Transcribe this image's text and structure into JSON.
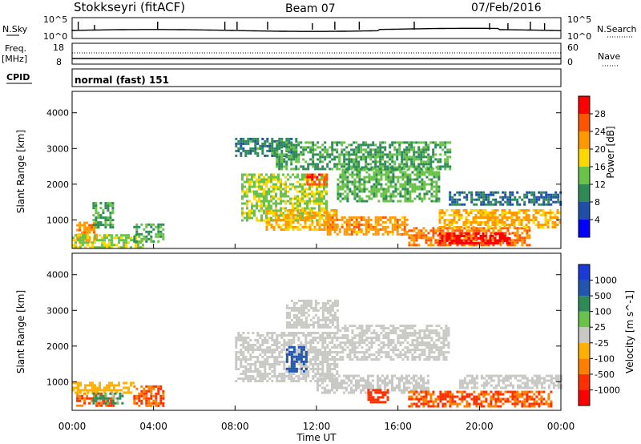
{
  "header": {
    "station": "Stokkseyri (fitACF)",
    "beam": "Beam 07",
    "date": "07/Feb/2016"
  },
  "top_panels": {
    "nsky_label": "N.Sky",
    "nsky_ticks": [
      "10^5",
      "10^0"
    ],
    "nsearch_label": "N.Search",
    "nsearch_ticks": [
      "10^5",
      "10^0"
    ],
    "freq_label": "Freq.",
    "freq_unit": "[MHz]",
    "freq_ticks": [
      "18",
      "8"
    ],
    "nave_label": "Nave",
    "nave_ticks": [
      "60",
      "0"
    ],
    "cpid_label": "CPID",
    "cpid_text": "normal (fast) 151"
  },
  "colors": {
    "power": [
      "#0000ff",
      "#1f4fa8",
      "#2e8b57",
      "#6ac24a",
      "#ffd700",
      "#ff9900",
      "#ff5500",
      "#ff0000"
    ],
    "velocity": [
      "#1a3ad6",
      "#2255b0",
      "#2e8b57",
      "#6ac24a",
      "#c8c8c4",
      "#ffb000",
      "#ff8000",
      "#ff3000",
      "#ff0000"
    ]
  },
  "chart_data": [
    {
      "type": "heatmap",
      "name": "power-panel",
      "xlabel": "",
      "ylabel": "Slant Range [km]",
      "xlim": [
        "00:00",
        "24:00"
      ],
      "ylim": [
        200,
        4600
      ],
      "yticks": [
        "1000",
        "2000",
        "3000",
        "4000"
      ],
      "xticks": [
        "00:00",
        "04:00",
        "08:00",
        "12:00",
        "16:00",
        "20:00",
        "00:00"
      ],
      "colorbar": {
        "label": "Power [dB]",
        "ticks": [
          "4",
          "8",
          "12",
          "16",
          "20",
          "24",
          "28"
        ],
        "range": [
          0,
          30
        ]
      },
      "regions": [
        {
          "t": [
            0.2,
            1.2
          ],
          "r": [
            400,
            950
          ],
          "level": 22
        },
        {
          "t": [
            0.0,
            3.5
          ],
          "r": [
            250,
            600
          ],
          "level": 14
        },
        {
          "t": [
            1.0,
            2.0
          ],
          "r": [
            800,
            1500
          ],
          "level": 10
        },
        {
          "t": [
            3.0,
            4.5
          ],
          "r": [
            400,
            900
          ],
          "level": 10
        },
        {
          "t": [
            8.3,
            12.5
          ],
          "r": [
            1000,
            2300
          ],
          "level": 14
        },
        {
          "t": [
            9.5,
            13.0
          ],
          "r": [
            700,
            1300
          ],
          "level": 20
        },
        {
          "t": [
            11.5,
            12.5
          ],
          "r": [
            2000,
            2300
          ],
          "level": 26
        },
        {
          "t": [
            12.5,
            16.5
          ],
          "r": [
            600,
            1100
          ],
          "level": 22
        },
        {
          "t": [
            13.0,
            18.0
          ],
          "r": [
            1500,
            2500
          ],
          "level": 12
        },
        {
          "t": [
            16.5,
            22.5
          ],
          "r": [
            300,
            800
          ],
          "level": 24
        },
        {
          "t": [
            18.0,
            21.5
          ],
          "r": [
            350,
            650
          ],
          "level": 30
        },
        {
          "t": [
            18.0,
            24.0
          ],
          "r": [
            800,
            1300
          ],
          "level": 20
        },
        {
          "t": [
            18.5,
            24.0
          ],
          "r": [
            1400,
            1800
          ],
          "level": 6
        },
        {
          "t": [
            8.0,
            11.0
          ],
          "r": [
            2800,
            3300
          ],
          "level": 8
        },
        {
          "t": [
            10.0,
            18.5
          ],
          "r": [
            2400,
            3200
          ],
          "level": 10
        }
      ]
    },
    {
      "type": "heatmap",
      "name": "velocity-panel",
      "xlabel": "Time UT",
      "ylabel": "Slant Range [km]",
      "xlim": [
        "00:00",
        "24:00"
      ],
      "ylim": [
        200,
        4600
      ],
      "yticks": [
        "1000",
        "2000",
        "3000",
        "4000"
      ],
      "xticks": [
        "00:00",
        "04:00",
        "08:00",
        "12:00",
        "16:00",
        "20:00",
        "00:00"
      ],
      "colorbar": {
        "label": "Velocity [m s^-1]",
        "ticks": [
          "1000",
          "500",
          "100",
          "25",
          "-25",
          "-100",
          "-500",
          "-1000"
        ]
      },
      "regions": [
        {
          "t": [
            0.2,
            2.0
          ],
          "r": [
            300,
            700
          ],
          "level": -300
        },
        {
          "t": [
            0.0,
            3.0
          ],
          "r": [
            700,
            1000
          ],
          "level": -50
        },
        {
          "t": [
            1.0,
            2.5
          ],
          "r": [
            400,
            700
          ],
          "level": 100
        },
        {
          "t": [
            3.0,
            4.5
          ],
          "r": [
            300,
            900
          ],
          "level": -300
        },
        {
          "t": [
            8.0,
            13.0
          ],
          "r": [
            1000,
            2400
          ],
          "level": 0
        },
        {
          "t": [
            10.5,
            11.5
          ],
          "r": [
            1300,
            2000
          ],
          "level": 600
        },
        {
          "t": [
            12.0,
            17.5
          ],
          "r": [
            700,
            1200
          ],
          "level": 0
        },
        {
          "t": [
            13.0,
            18.5
          ],
          "r": [
            1600,
            2600
          ],
          "level": 0
        },
        {
          "t": [
            14.5,
            15.5
          ],
          "r": [
            400,
            800
          ],
          "level": -600
        },
        {
          "t": [
            16.5,
            23.5
          ],
          "r": [
            300,
            750
          ],
          "level": -300
        },
        {
          "t": [
            19.0,
            24.0
          ],
          "r": [
            800,
            1200
          ],
          "level": 0
        },
        {
          "t": [
            10.5,
            13.0
          ],
          "r": [
            2500,
            3300
          ],
          "level": 0
        }
      ]
    }
  ]
}
